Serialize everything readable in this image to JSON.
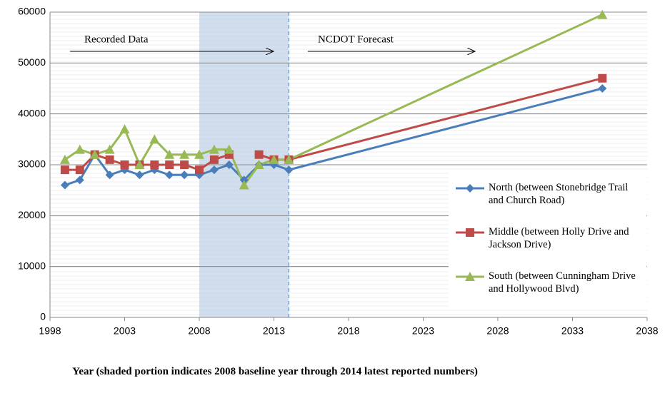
{
  "chart_data": {
    "type": "line",
    "x": [
      1999,
      2000,
      2001,
      2002,
      2003,
      2004,
      2005,
      2006,
      2007,
      2008,
      2009,
      2010,
      2011,
      2012,
      2013,
      2014,
      2035
    ],
    "series": [
      {
        "name": "North (between Stonebridge Trail and Church Road)",
        "color": "#4a7ebb",
        "marker": "diamond",
        "values": [
          26000,
          27000,
          32000,
          28000,
          29000,
          28000,
          29000,
          28000,
          28000,
          28000,
          29000,
          30000,
          27000,
          30000,
          30000,
          29000,
          45000
        ]
      },
      {
        "name": "Middle (between Holly Drive and Jackson Drive)",
        "color": "#be4b48",
        "marker": "square",
        "values": [
          29000,
          29000,
          32000,
          31000,
          30000,
          30000,
          30000,
          30000,
          30000,
          29000,
          31000,
          32000,
          null,
          32000,
          31000,
          31000,
          47000
        ]
      },
      {
        "name": "South (between Cunningham Drive and Hollywood Blvd)",
        "color": "#98b954",
        "marker": "triangle",
        "values": [
          31000,
          33000,
          32000,
          33000,
          37000,
          30000,
          35000,
          32000,
          32000,
          32000,
          33000,
          33000,
          26000,
          30000,
          31000,
          31000,
          59500
        ]
      }
    ],
    "xlim": [
      1998,
      2038
    ],
    "xticks": [
      1998,
      2003,
      2008,
      2013,
      2018,
      2023,
      2028,
      2033,
      2038
    ],
    "ylim": [
      0,
      60000
    ],
    "yticks": [
      0,
      10000,
      20000,
      30000,
      40000,
      50000,
      60000
    ],
    "grid": true,
    "legend": "right",
    "shade": [
      2008,
      2014
    ],
    "annotations": [
      "Recorded Data",
      "NCDOT Forecast"
    ],
    "xlabel": "Year (shaded portion indicates 2008 baseline year through 2014 latest reported numbers)"
  }
}
